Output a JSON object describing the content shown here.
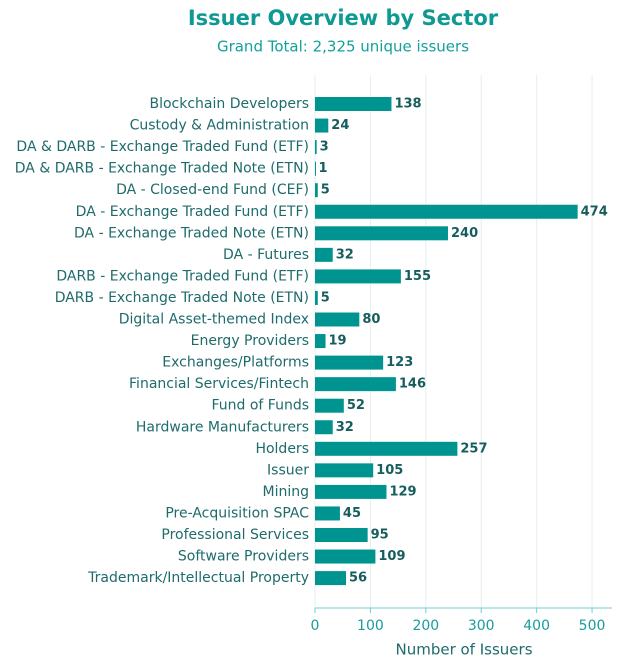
{
  "chart_data": {
    "type": "bar",
    "orientation": "horizontal",
    "title": "Issuer Overview by Sector",
    "subtitle": "Grand Total: 2,325 unique issuers",
    "x_label": "Number of Issuers",
    "categories": [
      "Blockchain Developers",
      "Custody & Administration",
      "DA & DARB - Exchange Traded Fund (ETF)",
      "DA & DARB - Exchange Traded Note (ETN)",
      "DA - Closed-end Fund (CEF)",
      "DA - Exchange Traded Fund (ETF)",
      "DA - Exchange Traded Note (ETN)",
      "DA - Futures",
      "DARB - Exchange Traded Fund (ETF)",
      "DARB - Exchange Traded Note (ETN)",
      "Digital Asset-themed Index",
      "Energy Providers",
      "Exchanges/Platforms",
      "Financial Services/Fintech",
      "Fund of Funds",
      "Hardware Manufacturers",
      "Holders",
      "Issuer",
      "Mining",
      "Pre-Acquisition SPAC",
      "Professional Services",
      "Software Providers",
      "Trademark/Intellectual Property"
    ],
    "values": [
      138,
      24,
      3,
      1,
      5,
      474,
      240,
      32,
      155,
      5,
      80,
      19,
      123,
      146,
      52,
      32,
      257,
      105,
      129,
      45,
      95,
      109,
      56
    ],
    "color": "#009490",
    "xlim": [
      0,
      536
    ],
    "xticks": [
      0,
      100,
      200,
      300,
      400,
      500
    ],
    "grid": true
  }
}
